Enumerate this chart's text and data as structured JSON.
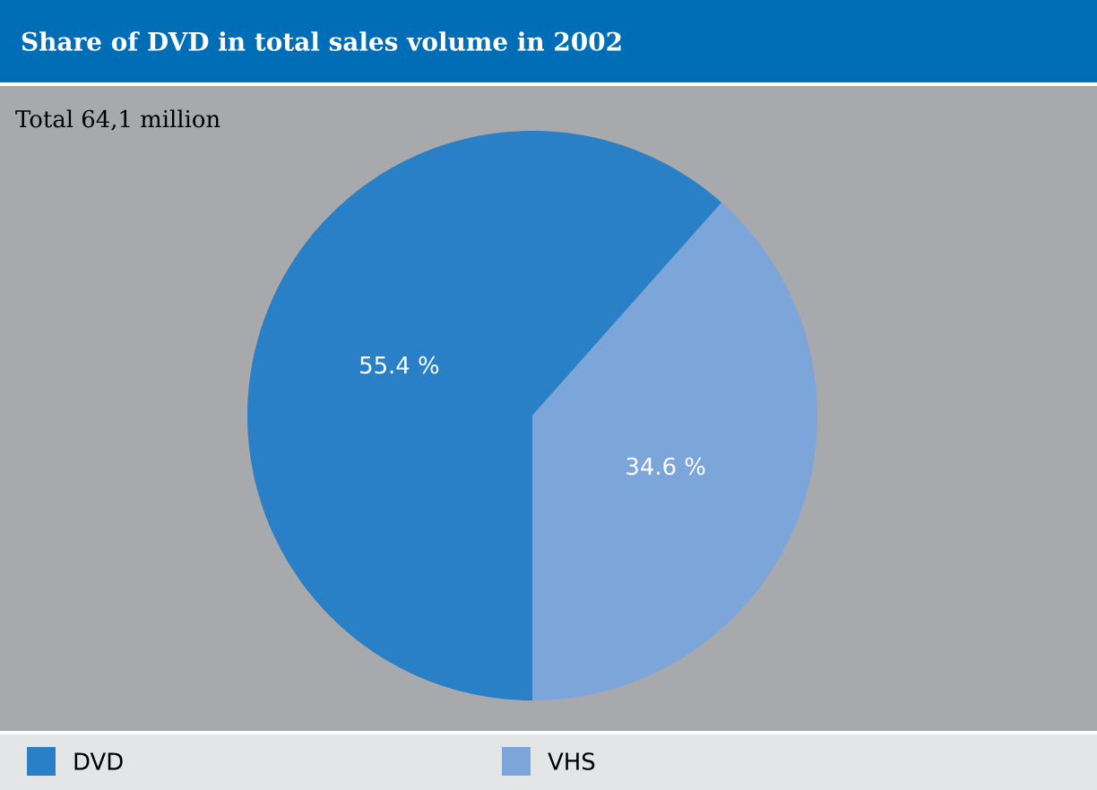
{
  "chart_data": {
    "type": "pie",
    "title": "Share of DVD in total sales volume in 2002",
    "subtitle": "Total 64,1 million",
    "categories": [
      "DVD",
      "VHS"
    ],
    "values": [
      55.4,
      34.6
    ],
    "colors": [
      "#2a80c6",
      "#7ca6d9"
    ],
    "value_labels": [
      "55.4 %",
      "34.6 %"
    ],
    "legend": "bottom"
  }
}
